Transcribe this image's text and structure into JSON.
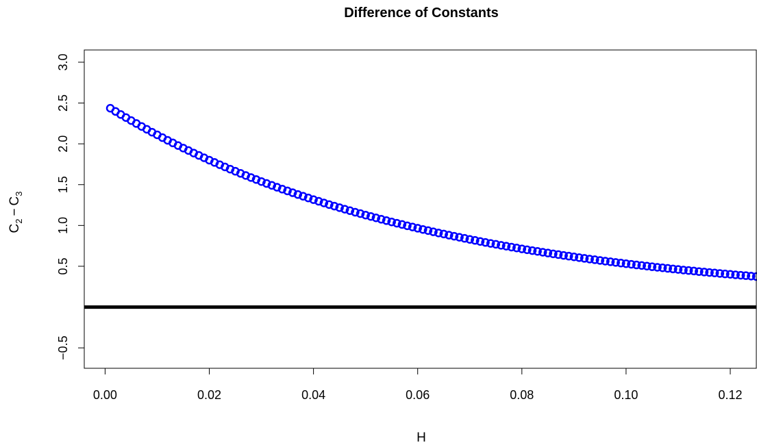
{
  "chart_data": {
    "type": "scatter",
    "title": "Difference of Constants",
    "xlabel": "H",
    "ylabel": {
      "base1": "C",
      "sub1": "2",
      "sep": "−",
      "base2": "C",
      "sub2": "3"
    },
    "xlim": [
      -0.004,
      0.125
    ],
    "ylim": [
      -0.75,
      3.15
    ],
    "x_ticks": [
      {
        "value": 0.0,
        "label": "0.00"
      },
      {
        "value": 0.02,
        "label": "0.02"
      },
      {
        "value": 0.04,
        "label": "0.04"
      },
      {
        "value": 0.06,
        "label": "0.06"
      },
      {
        "value": 0.08,
        "label": "0.08"
      },
      {
        "value": 0.1,
        "label": "0.10"
      },
      {
        "value": 0.12,
        "label": "0.12"
      }
    ],
    "y_ticks": [
      {
        "value": -0.5,
        "label": "−0.5"
      },
      {
        "value": 0.5,
        "label": "0.5"
      },
      {
        "value": 1.0,
        "label": "1.0"
      },
      {
        "value": 1.5,
        "label": "1.5"
      },
      {
        "value": 2.0,
        "label": "2.0"
      },
      {
        "value": 2.5,
        "label": "2.5"
      },
      {
        "value": 3.0,
        "label": "3.0"
      }
    ],
    "hline": {
      "y": 0,
      "color": "#000000"
    },
    "point_color": "#0000ff",
    "marker": "open-circle",
    "grid": false,
    "series": [
      {
        "x": [
          0.001,
          0.002,
          0.003,
          0.004,
          0.005,
          0.006,
          0.007,
          0.008,
          0.009,
          0.01,
          0.011,
          0.012,
          0.013,
          0.014,
          0.015,
          0.016,
          0.017,
          0.018,
          0.019,
          0.02,
          0.021,
          0.022,
          0.023,
          0.024,
          0.025,
          0.026,
          0.027,
          0.028,
          0.029,
          0.03,
          0.031,
          0.032,
          0.033,
          0.034,
          0.035,
          0.036,
          0.037,
          0.038,
          0.039,
          0.04,
          0.041,
          0.042,
          0.043,
          0.044,
          0.045,
          0.046,
          0.047,
          0.048,
          0.049,
          0.05,
          0.051,
          0.052,
          0.053,
          0.054,
          0.055,
          0.056,
          0.057,
          0.058,
          0.059,
          0.06,
          0.061,
          0.062,
          0.063,
          0.064,
          0.065,
          0.066,
          0.067,
          0.068,
          0.069,
          0.07,
          0.071,
          0.072,
          0.073,
          0.074,
          0.075,
          0.076,
          0.077,
          0.078,
          0.079,
          0.08,
          0.081,
          0.082,
          0.083,
          0.084,
          0.085,
          0.086,
          0.087,
          0.088,
          0.089,
          0.09,
          0.091,
          0.092,
          0.093,
          0.094,
          0.095,
          0.096,
          0.097,
          0.098,
          0.099,
          0.1,
          0.101,
          0.102,
          0.103,
          0.104,
          0.105,
          0.106,
          0.107,
          0.108,
          0.109,
          0.11,
          0.111,
          0.112,
          0.113,
          0.114,
          0.115,
          0.116,
          0.117,
          0.118,
          0.119,
          0.12,
          0.121,
          0.122,
          0.123,
          0.124,
          0.125
        ],
        "y": [
          2.436,
          2.397,
          2.359,
          2.322,
          2.285,
          2.249,
          2.213,
          2.178,
          2.143,
          2.11,
          2.076,
          2.043,
          2.011,
          1.979,
          1.948,
          1.918,
          1.887,
          1.858,
          1.829,
          1.8,
          1.772,
          1.744,
          1.717,
          1.69,
          1.664,
          1.638,
          1.612,
          1.587,
          1.563,
          1.538,
          1.514,
          1.491,
          1.468,
          1.445,
          1.423,
          1.401,
          1.379,
          1.358,
          1.337,
          1.316,
          1.296,
          1.276,
          1.256,
          1.237,
          1.218,
          1.199,
          1.181,
          1.162,
          1.145,
          1.127,
          1.11,
          1.093,
          1.076,
          1.059,
          1.043,
          1.027,
          1.012,
          0.996,
          0.981,
          0.966,
          0.951,
          0.937,
          0.922,
          0.908,
          0.895,
          0.881,
          0.868,
          0.855,
          0.842,
          0.829,
          0.817,
          0.804,
          0.792,
          0.78,
          0.769,
          0.757,
          0.746,
          0.735,
          0.724,
          0.713,
          0.702,
          0.692,
          0.682,
          0.672,
          0.662,
          0.652,
          0.643,
          0.633,
          0.624,
          0.615,
          0.606,
          0.597,
          0.588,
          0.58,
          0.571,
          0.563,
          0.555,
          0.547,
          0.539,
          0.531,
          0.524,
          0.516,
          0.509,
          0.502,
          0.494,
          0.487,
          0.481,
          0.474,
          0.467,
          0.461,
          0.454,
          0.448,
          0.442,
          0.435,
          0.429,
          0.423,
          0.418,
          0.412,
          0.406,
          0.401,
          0.395,
          0.39,
          0.385,
          0.379,
          0.374
        ]
      }
    ]
  }
}
